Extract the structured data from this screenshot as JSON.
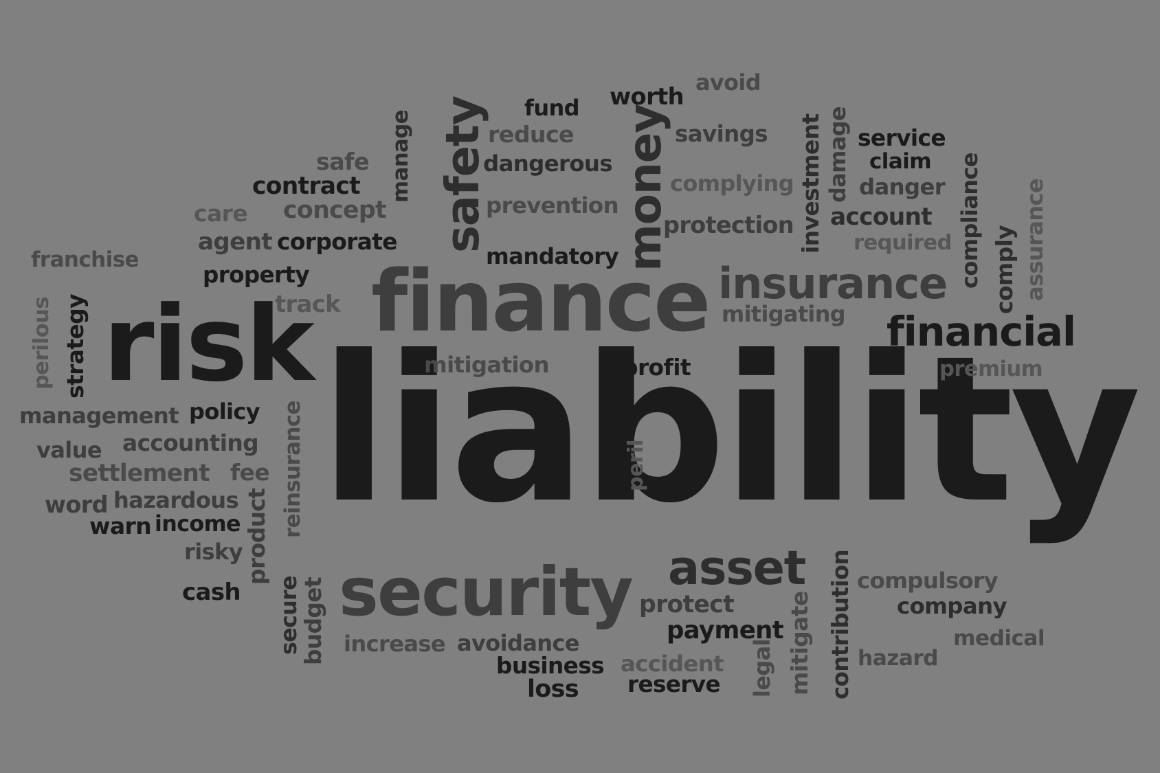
{
  "background": "#808080",
  "words": [
    {
      "text": "liability"
    },
    {
      "text": "risk"
    },
    {
      "text": "finance"
    },
    {
      "text": "insurance"
    },
    {
      "text": "financial"
    },
    {
      "text": "security"
    },
    {
      "text": "asset"
    },
    {
      "text": "money"
    },
    {
      "text": "safety"
    },
    {
      "text": "avoid"
    },
    {
      "text": "worth"
    },
    {
      "text": "fund"
    },
    {
      "text": "reduce"
    },
    {
      "text": "savings"
    },
    {
      "text": "dangerous"
    },
    {
      "text": "safe"
    },
    {
      "text": "contract"
    },
    {
      "text": "manage"
    },
    {
      "text": "complying"
    },
    {
      "text": "investment"
    },
    {
      "text": "damage"
    },
    {
      "text": "service"
    },
    {
      "text": "claim"
    },
    {
      "text": "danger"
    },
    {
      "text": "care"
    },
    {
      "text": "concept"
    },
    {
      "text": "prevention"
    },
    {
      "text": "protection"
    },
    {
      "text": "account"
    },
    {
      "text": "compliance"
    },
    {
      "text": "assurance"
    },
    {
      "text": "agent"
    },
    {
      "text": "corporate"
    },
    {
      "text": "required"
    },
    {
      "text": "comply"
    },
    {
      "text": "franchise"
    },
    {
      "text": "mandatory"
    },
    {
      "text": "property"
    },
    {
      "text": "track"
    },
    {
      "text": "mitigating"
    },
    {
      "text": "perilous"
    },
    {
      "text": "strategy"
    },
    {
      "text": "mitigation"
    },
    {
      "text": "profit"
    },
    {
      "text": "premium"
    },
    {
      "text": "management"
    },
    {
      "text": "policy"
    },
    {
      "text": "reinsurance"
    },
    {
      "text": "value"
    },
    {
      "text": "accounting"
    },
    {
      "text": "peril"
    },
    {
      "text": "settlement"
    },
    {
      "text": "fee"
    },
    {
      "text": "word"
    },
    {
      "text": "hazardous"
    },
    {
      "text": "product"
    },
    {
      "text": "warn"
    },
    {
      "text": "income"
    },
    {
      "text": "risky"
    },
    {
      "text": "cash"
    },
    {
      "text": "secure"
    },
    {
      "text": "budget"
    },
    {
      "text": "compulsory"
    },
    {
      "text": "protect"
    },
    {
      "text": "company"
    },
    {
      "text": "payment"
    },
    {
      "text": "mitigate"
    },
    {
      "text": "contribution"
    },
    {
      "text": "medical"
    },
    {
      "text": "increase"
    },
    {
      "text": "avoidance"
    },
    {
      "text": "accident"
    },
    {
      "text": "hazard"
    },
    {
      "text": "business"
    },
    {
      "text": "legal"
    },
    {
      "text": "reserve"
    },
    {
      "text": "loss"
    }
  ]
}
